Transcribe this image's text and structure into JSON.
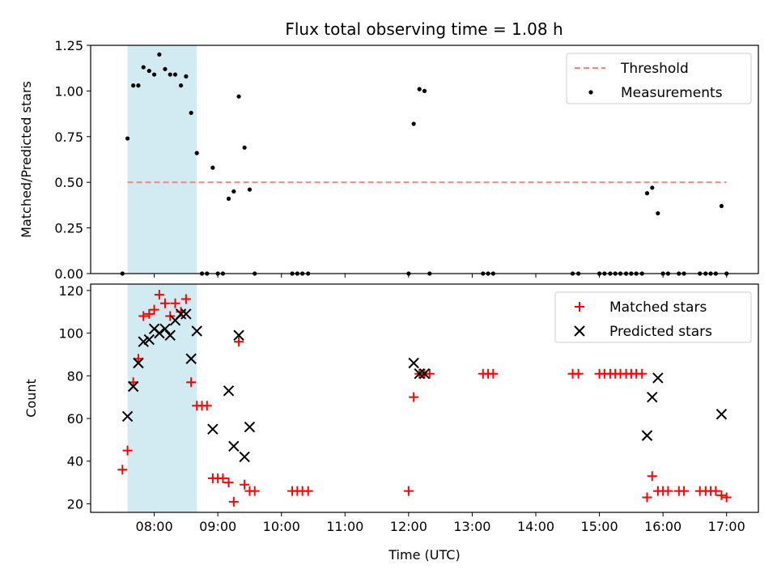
{
  "title": "Flux total observing time = 1.08 h",
  "chart_data": [
    {
      "type": "scatter",
      "ylabel": "Matched/Predicted stars",
      "xlabel": "",
      "ylim": [
        0,
        1.25
      ],
      "yticks": [
        "0.00",
        "0.25",
        "0.50",
        "0.75",
        "1.00",
        "1.25"
      ],
      "xlim_hours": [
        7.0,
        17.5
      ],
      "highlight_span_hours": [
        7.58,
        8.67
      ],
      "threshold": {
        "label": "Threshold",
        "value": 0.5,
        "x_range_hours": [
          7.58,
          17.0
        ],
        "color": "#ff7f7f"
      },
      "legend": [
        "Threshold",
        "Measurements"
      ],
      "legend_position": "upper right",
      "series": [
        {
          "name": "Measurements",
          "color": "#000000",
          "x": [
            7.5,
            7.58,
            7.67,
            7.75,
            7.83,
            7.92,
            8.0,
            8.08,
            8.17,
            8.25,
            8.33,
            8.42,
            8.5,
            8.58,
            8.67,
            8.75,
            8.83,
            8.92,
            9.0,
            9.08,
            9.17,
            9.25,
            9.33,
            9.42,
            9.5,
            9.58,
            10.17,
            10.25,
            10.33,
            10.42,
            12.0,
            12.08,
            12.17,
            12.25,
            12.33,
            13.17,
            13.25,
            13.33,
            14.58,
            14.67,
            15.0,
            15.08,
            15.17,
            15.25,
            15.33,
            15.42,
            15.5,
            15.58,
            15.67,
            15.75,
            15.83,
            15.92,
            16.0,
            16.08,
            16.25,
            16.33,
            16.58,
            16.67,
            16.75,
            16.83,
            16.92,
            17.0
          ],
          "y": [
            0,
            0.74,
            1.03,
            1.03,
            1.13,
            1.11,
            1.09,
            1.2,
            1.12,
            1.09,
            1.09,
            1.03,
            1.08,
            0.88,
            0.66,
            0,
            0,
            0.58,
            0,
            0,
            0.41,
            0.45,
            0.97,
            0.69,
            0.46,
            0,
            0,
            0,
            0,
            0,
            0,
            0.82,
            1.01,
            1.0,
            0,
            0,
            0,
            0,
            0,
            0,
            0,
            0,
            0,
            0,
            0,
            0,
            0,
            0,
            0,
            0.44,
            0.47,
            0.33,
            0,
            0,
            0,
            0,
            0,
            0,
            0,
            0,
            0.37,
            0
          ]
        }
      ]
    },
    {
      "type": "scatter",
      "ylabel": "Count",
      "xlabel": "Time (UTC)",
      "ylim": [
        16,
        123
      ],
      "yticks": [
        "20",
        "40",
        "60",
        "80",
        "100",
        "120"
      ],
      "xlim_hours": [
        7.0,
        17.5
      ],
      "xtick_hours": [
        8,
        9,
        10,
        11,
        12,
        13,
        14,
        15,
        16,
        17
      ],
      "xtick_labels": [
        "08:00",
        "09:00",
        "10:00",
        "11:00",
        "12:00",
        "13:00",
        "14:00",
        "15:00",
        "16:00",
        "17:00"
      ],
      "highlight_span_hours": [
        7.58,
        8.67
      ],
      "legend": [
        "Matched stars",
        "Predicted stars"
      ],
      "legend_position": "upper right",
      "series": [
        {
          "name": "Matched stars",
          "marker": "+",
          "color": "#ff0000",
          "x": [
            7.5,
            7.58,
            7.67,
            7.75,
            7.83,
            7.92,
            8.0,
            8.08,
            8.17,
            8.25,
            8.33,
            8.42,
            8.5,
            8.58,
            8.67,
            8.75,
            8.83,
            8.92,
            9.0,
            9.08,
            9.17,
            9.25,
            9.33,
            9.42,
            9.5,
            9.58,
            10.17,
            10.25,
            10.33,
            10.42,
            12.0,
            12.08,
            12.17,
            12.25,
            12.33,
            13.17,
            13.25,
            13.33,
            14.58,
            14.67,
            15.0,
            15.08,
            15.17,
            15.25,
            15.33,
            15.42,
            15.5,
            15.58,
            15.67,
            15.75,
            15.83,
            15.92,
            16.0,
            16.08,
            16.25,
            16.33,
            16.58,
            16.67,
            16.75,
            16.83,
            16.92,
            17.0
          ],
          "y": [
            36,
            45,
            77,
            88,
            108,
            109,
            111,
            118,
            114,
            108,
            114,
            110,
            116,
            77,
            66,
            66,
            66,
            32,
            32,
            32,
            30,
            21,
            96,
            29,
            26,
            26,
            26,
            26,
            26,
            26,
            26,
            70,
            81,
            81,
            81,
            81,
            81,
            81,
            81,
            81,
            81,
            81,
            81,
            81,
            81,
            81,
            81,
            81,
            81,
            23,
            33,
            26,
            26,
            26,
            26,
            26,
            26,
            26,
            26,
            26,
            24,
            23
          ]
        },
        {
          "name": "Predicted stars",
          "marker": "x",
          "color": "#000000",
          "x": [
            7.58,
            7.67,
            7.75,
            7.83,
            7.92,
            8.0,
            8.08,
            8.17,
            8.25,
            8.33,
            8.42,
            8.5,
            8.58,
            8.67,
            8.92,
            9.17,
            9.25,
            9.33,
            9.42,
            9.5,
            12.08,
            12.17,
            12.25,
            15.75,
            15.83,
            15.92,
            16.92
          ],
          "y": [
            61,
            75,
            86,
            96,
            97,
            102,
            100,
            102,
            99,
            106,
            109,
            109,
            88,
            101,
            55,
            73,
            47,
            99,
            42,
            56,
            86,
            81,
            81,
            52,
            70,
            79,
            62
          ]
        }
      ]
    }
  ]
}
